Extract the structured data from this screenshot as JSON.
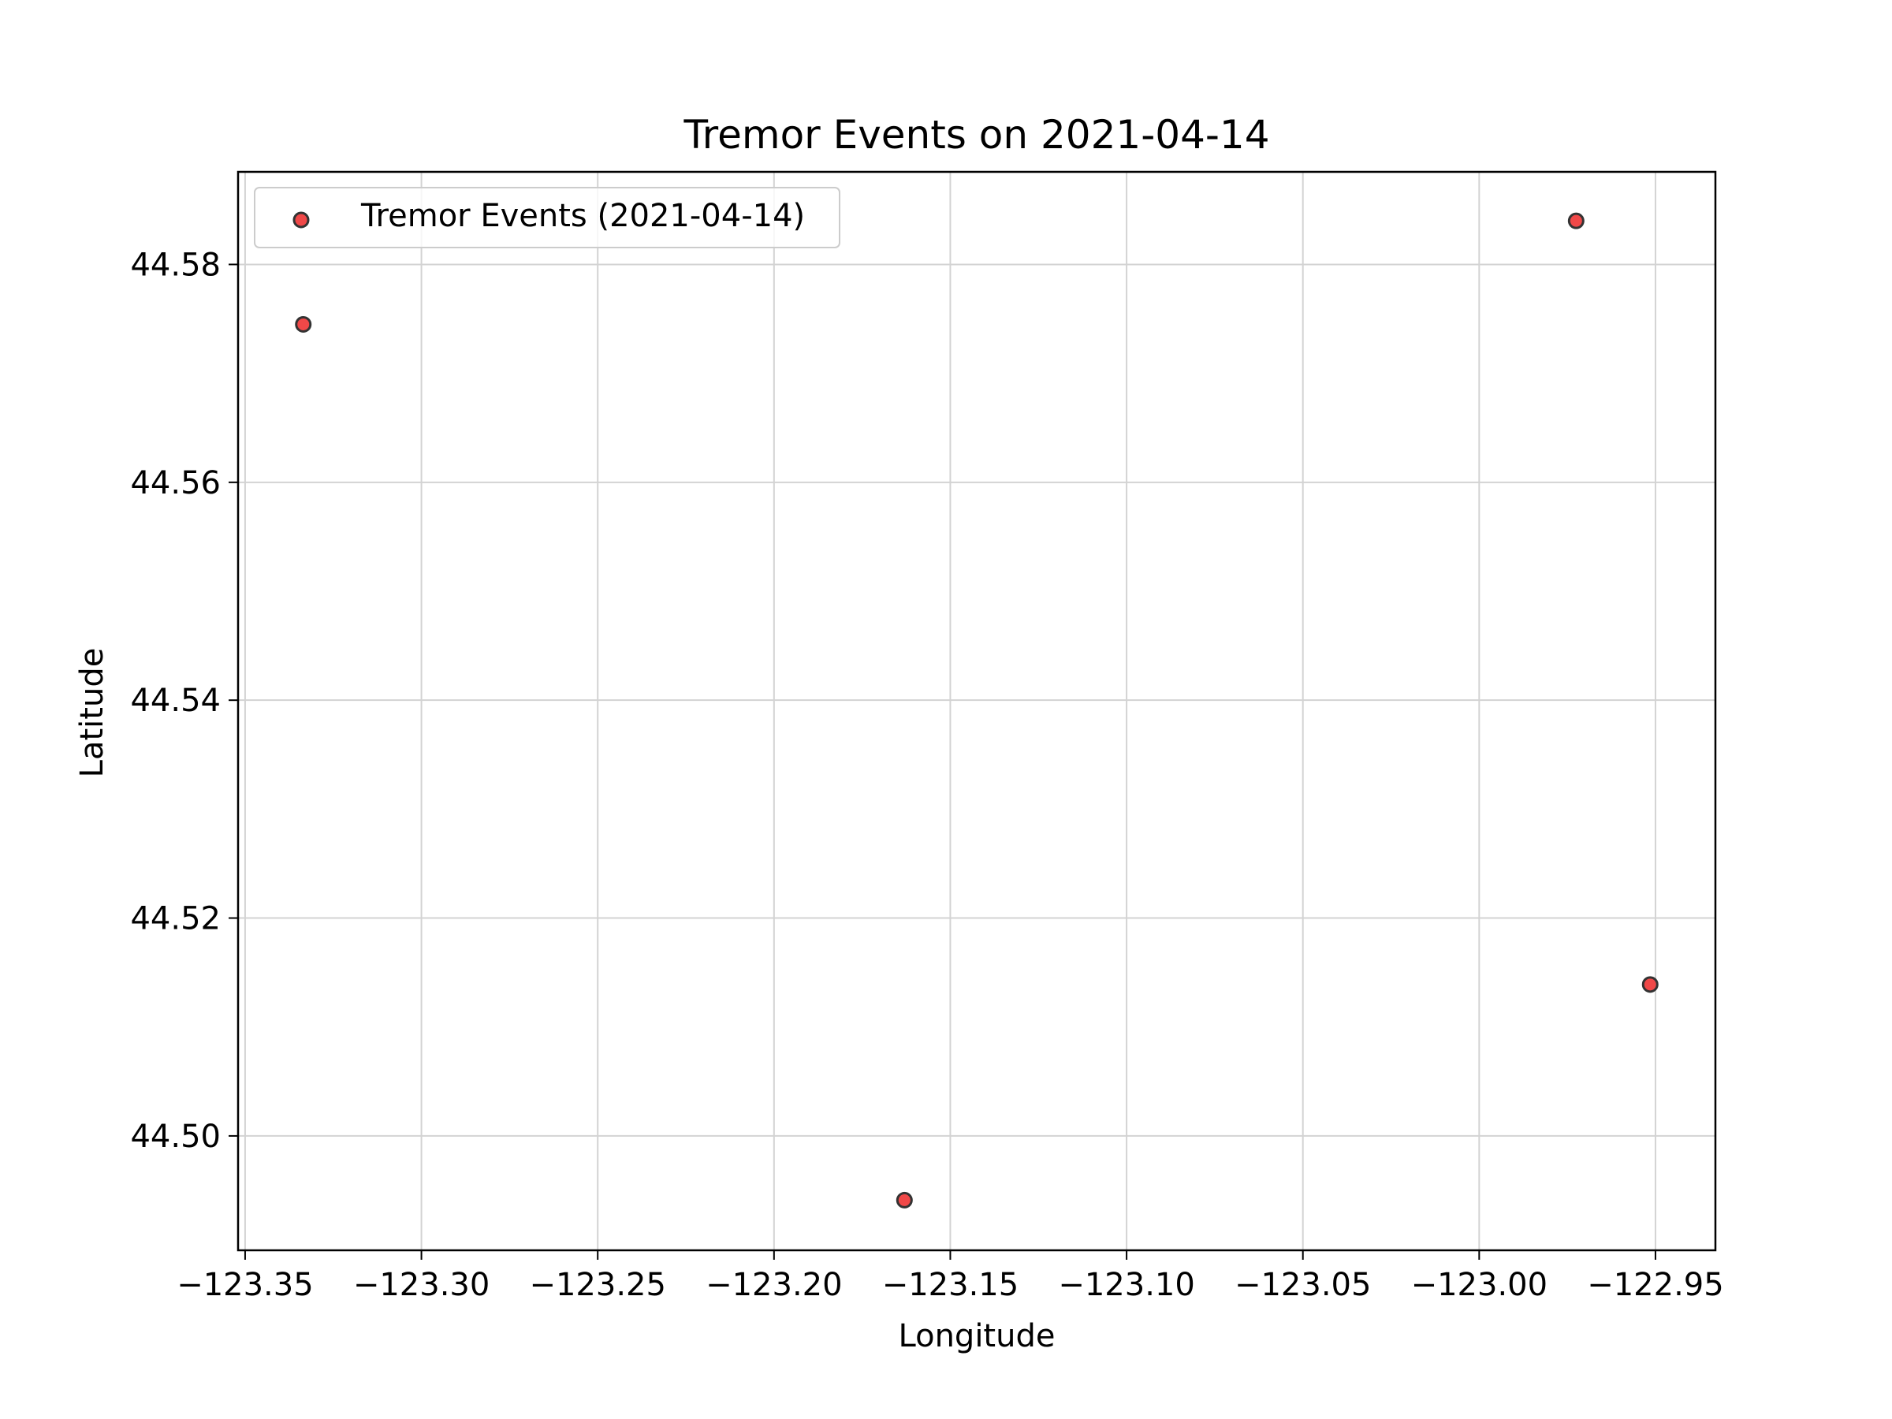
{
  "chart_data": {
    "type": "scatter",
    "title": "Tremor Events on 2021-04-14",
    "xlabel": "Longitude",
    "ylabel": "Latitude",
    "xlim": [
      -123.352,
      -122.933
    ],
    "ylim": [
      44.4895,
      44.5885
    ],
    "xticks": [
      -123.35,
      -123.3,
      -123.25,
      -123.2,
      -123.15,
      -123.1,
      -123.05,
      -123.0,
      -122.95
    ],
    "xtick_labels": [
      "−123.35",
      "−123.30",
      "−123.25",
      "−123.20",
      "−123.15",
      "−123.10",
      "−123.05",
      "−123.00",
      "−122.95"
    ],
    "yticks": [
      44.5,
      44.52,
      44.54,
      44.56,
      44.58
    ],
    "ytick_labels": [
      "44.50",
      "44.52",
      "44.54",
      "44.56",
      "44.58"
    ],
    "grid": true,
    "legend_position": "top-left",
    "series": [
      {
        "name": "Tremor Events (2021-04-14)",
        "color": "#f04848",
        "edge_color": "#333333",
        "points": [
          {
            "x": -123.3335,
            "y": 44.5745
          },
          {
            "x": -123.163,
            "y": 44.4941
          },
          {
            "x": -122.9725,
            "y": 44.584
          },
          {
            "x": -122.9515,
            "y": 44.5139
          }
        ]
      }
    ]
  }
}
